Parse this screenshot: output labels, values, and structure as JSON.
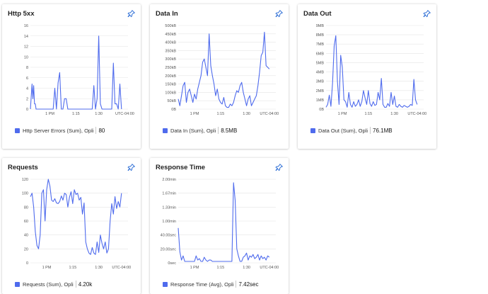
{
  "colors": {
    "series": "#4f6bed",
    "grid": "#e4e4e4",
    "pin": "#2f6fd6"
  },
  "tiles": [
    {
      "title": "Http 5xx",
      "legend_label": "Http Server Errors (Sum), Opli",
      "legend_value": "80",
      "pin_icon": "pin-icon"
    },
    {
      "title": "Data In",
      "legend_label": "Data In (Sum), Opli",
      "legend_value": "8.5MB",
      "pin_icon": "pin-icon"
    },
    {
      "title": "Data Out",
      "legend_label": "Data Out (Sum), Opli",
      "legend_value": "76.1MB",
      "pin_icon": "pin-icon"
    },
    {
      "title": "Requests",
      "legend_label": "Requests (Sum), Opli",
      "legend_value": "4.20k",
      "pin_icon": "pin-icon"
    },
    {
      "title": "Response Time",
      "legend_label": "Response Time (Avg), Opli",
      "legend_value": "7.42sec",
      "pin_icon": "pin-icon"
    }
  ],
  "chart_data": [
    {
      "type": "line",
      "title": "Http 5xx",
      "ylim": [
        0,
        16
      ],
      "y_ticks": [
        "16",
        "14",
        "12",
        "10",
        "8",
        "6",
        "4",
        "2",
        "0"
      ],
      "y_tick_values": [
        16,
        14,
        12,
        10,
        8,
        6,
        4,
        2,
        0
      ],
      "x_ticks": [
        "1 PM",
        "1:15",
        "1:30",
        "UTC-04:00"
      ],
      "x_tick_positions": [
        12,
        28,
        42,
        58
      ],
      "x_range": [
        0,
        60
      ],
      "x": [
        0,
        1,
        1.5,
        2,
        2.5,
        3,
        3.5,
        4,
        6,
        8,
        10,
        12,
        13,
        14,
        15,
        16,
        17,
        18,
        19,
        20,
        21,
        22,
        23,
        24,
        25,
        26,
        27,
        28,
        30,
        32,
        34,
        36,
        38,
        39,
        40,
        41,
        42,
        43,
        44,
        45,
        46,
        47,
        48,
        49,
        50,
        51,
        52,
        53,
        54,
        55,
        56
      ],
      "values": [
        0,
        4.8,
        2,
        4.5,
        1,
        1,
        0,
        0,
        0,
        0,
        0,
        0,
        0,
        0,
        4,
        0,
        5,
        7,
        0,
        0,
        2,
        2,
        0,
        0,
        0,
        0,
        0,
        0,
        0,
        0,
        0,
        0,
        0,
        4.5,
        0,
        2,
        14,
        1,
        0,
        0,
        0,
        0,
        0,
        0,
        0,
        8.8,
        1,
        1,
        0,
        4.8,
        0
      ]
    },
    {
      "type": "line",
      "title": "Data In",
      "ylim": [
        0,
        500
      ],
      "y_ticks": [
        "500kB",
        "450kB",
        "400kB",
        "350kB",
        "300kB",
        "250kB",
        "200kB",
        "150kB",
        "100kB",
        "50kB",
        "0B"
      ],
      "y_tick_values": [
        500,
        450,
        400,
        350,
        300,
        250,
        200,
        150,
        100,
        50,
        0
      ],
      "x_ticks": [
        "1 PM",
        "1:15",
        "1:30",
        "UTC-04:00"
      ],
      "x_tick_positions": [
        10,
        26,
        42,
        56
      ],
      "x_range": [
        0,
        60
      ],
      "x": [
        0,
        1,
        2,
        3,
        4,
        5,
        6,
        7,
        8,
        9,
        10,
        11,
        12,
        13,
        14,
        15,
        16,
        17,
        18,
        19,
        20,
        21,
        22,
        23,
        24,
        25,
        26,
        27,
        28,
        29,
        30,
        31,
        32,
        33,
        34,
        35,
        36,
        37,
        38,
        39,
        40,
        41,
        42,
        43,
        44,
        45,
        46,
        47,
        48,
        49,
        50,
        51,
        52,
        53,
        54,
        55,
        56
      ],
      "values": [
        60,
        20,
        80,
        140,
        160,
        40,
        100,
        120,
        80,
        40,
        90,
        60,
        120,
        160,
        200,
        280,
        300,
        250,
        200,
        450,
        260,
        200,
        150,
        80,
        120,
        60,
        40,
        30,
        70,
        20,
        10,
        10,
        30,
        20,
        40,
        80,
        110,
        100,
        140,
        160,
        100,
        60,
        20,
        60,
        80,
        20,
        40,
        60,
        80,
        140,
        220,
        320,
        340,
        460,
        260,
        250,
        240
      ]
    },
    {
      "type": "line",
      "title": "Data Out",
      "ylim": [
        0,
        9
      ],
      "y_ticks": [
        "9MB",
        "8MB",
        "7MB",
        "6MB",
        "5MB",
        "4MB",
        "3MB",
        "2MB",
        "1MB",
        "0B"
      ],
      "y_tick_values": [
        9,
        8,
        7,
        6,
        5,
        4,
        3,
        2,
        1,
        0
      ],
      "x_ticks": [
        "1 PM",
        "1:15",
        "1:30",
        "UTC-04:00"
      ],
      "x_tick_positions": [
        10,
        26,
        42,
        56
      ],
      "x_range": [
        0,
        60
      ],
      "x": [
        0,
        1,
        2,
        3,
        4,
        5,
        6,
        7,
        8,
        9,
        10,
        11,
        12,
        13,
        14,
        15,
        16,
        17,
        18,
        19,
        20,
        21,
        22,
        23,
        24,
        25,
        26,
        27,
        28,
        29,
        30,
        31,
        32,
        33,
        34,
        35,
        36,
        37,
        38,
        39,
        40,
        41,
        42,
        43,
        44,
        45,
        46,
        47,
        48,
        49,
        50,
        51,
        52,
        53,
        54,
        55,
        56
      ],
      "values": [
        0.2,
        0.5,
        1.5,
        0.3,
        2.8,
        6.8,
        7.9,
        3,
        0.5,
        5.8,
        4.5,
        1,
        0.8,
        0.2,
        1.8,
        0.5,
        0.2,
        0.8,
        0.3,
        0.5,
        1,
        0.3,
        0.8,
        2,
        1.2,
        0.5,
        2,
        0.6,
        0.3,
        0.8,
        0.4,
        0.5,
        1.8,
        1,
        3.3,
        0.5,
        0.2,
        0.2,
        0.6,
        0.3,
        1.8,
        0.5,
        1.4,
        0.3,
        0.2,
        0.5,
        0.3,
        0.2,
        0.4,
        0.3,
        0.2,
        0.3,
        0.5,
        0.4,
        3.2,
        1,
        0.5
      ]
    },
    {
      "type": "line",
      "title": "Requests",
      "ylim": [
        0,
        120
      ],
      "y_ticks": [
        "120",
        "100",
        "80",
        "60",
        "40",
        "20",
        "0"
      ],
      "y_tick_values": [
        120,
        100,
        80,
        60,
        40,
        20,
        0
      ],
      "x_ticks": [
        "1 PM",
        "1:15",
        "1:30",
        "UTC-04:00"
      ],
      "x_tick_positions": [
        10,
        26,
        42,
        56
      ],
      "x_range": [
        0,
        60
      ],
      "x": [
        0,
        1,
        2,
        3,
        4,
        5,
        6,
        7,
        8,
        9,
        10,
        11,
        12,
        13,
        14,
        15,
        16,
        17,
        18,
        19,
        20,
        21,
        22,
        23,
        24,
        25,
        26,
        27,
        28,
        29,
        30,
        31,
        32,
        33,
        34,
        35,
        36,
        37,
        38,
        39,
        40,
        41,
        42,
        43,
        44,
        45,
        46,
        47,
        48,
        49,
        50,
        51,
        52,
        53,
        54,
        55,
        56
      ],
      "values": [
        95,
        100,
        80,
        45,
        25,
        20,
        40,
        100,
        105,
        60,
        105,
        120,
        110,
        90,
        88,
        92,
        86,
        85,
        88,
        96,
        90,
        100,
        98,
        80,
        94,
        102,
        85,
        105,
        98,
        100,
        90,
        94,
        70,
        86,
        30,
        20,
        14,
        12,
        22,
        14,
        12,
        30,
        15,
        40,
        28,
        20,
        30,
        14,
        20,
        60,
        85,
        70,
        95,
        78,
        88,
        80,
        100
      ]
    },
    {
      "type": "line",
      "title": "Response Time",
      "ylim": [
        0,
        120
      ],
      "y_ticks": [
        "2.00min",
        "1.67min",
        "1.33min",
        "1.00min",
        "40.00sec",
        "20.00sec",
        "0sec"
      ],
      "y_tick_values": [
        120,
        100,
        80,
        60,
        40,
        20,
        0
      ],
      "x_ticks": [
        "1 PM",
        "1:15",
        "1:30",
        "UTC-04:00"
      ],
      "x_tick_positions": [
        10,
        26,
        42,
        56
      ],
      "x_range": [
        0,
        60
      ],
      "x": [
        0,
        1,
        2,
        3,
        4,
        5,
        6,
        7,
        8,
        9,
        10,
        11,
        12,
        13,
        14,
        15,
        16,
        17,
        18,
        19,
        20,
        21,
        22,
        23,
        24,
        25,
        26,
        27,
        28,
        29,
        30,
        31,
        32,
        33,
        34,
        35,
        36,
        37,
        38,
        39,
        40,
        41,
        42,
        43,
        44,
        45,
        46,
        47,
        48,
        49,
        50,
        51,
        52,
        53,
        54,
        55,
        56
      ],
      "values": [
        50,
        16,
        4,
        10,
        2,
        2,
        2,
        2,
        2,
        2,
        2,
        10,
        4,
        6,
        2,
        2,
        8,
        4,
        2,
        4,
        4,
        2,
        2,
        2,
        2,
        2,
        2,
        2,
        2,
        2,
        2,
        2,
        2,
        2,
        115,
        90,
        20,
        10,
        2,
        2,
        8,
        10,
        14,
        4,
        10,
        8,
        12,
        6,
        8,
        12,
        4,
        10,
        6,
        8,
        4,
        10,
        8
      ]
    }
  ]
}
